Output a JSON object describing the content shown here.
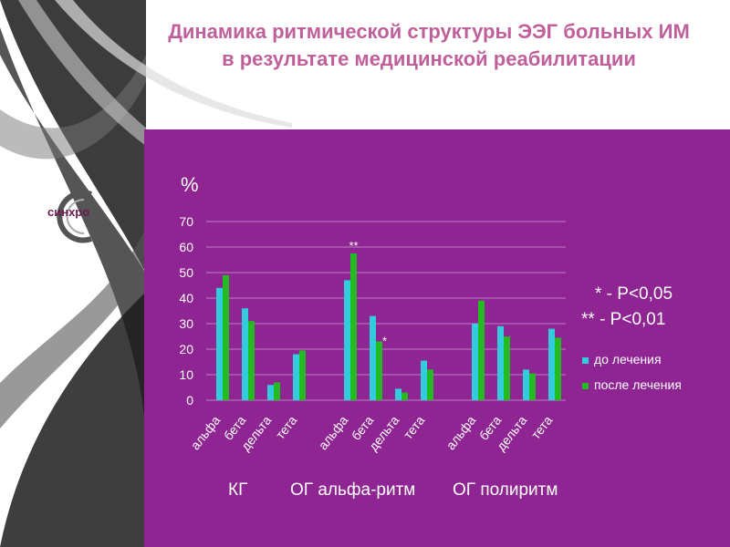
{
  "title": "Динамика ритмической структуры ЭЭГ больных ИМ в результате медицинской реабилитации",
  "logo_text": "синхро",
  "y_unit": "%",
  "significance_notes": [
    "* - P<0,05",
    "** - P<0,01"
  ],
  "group_labels": [
    "КГ",
    "ОГ альфа-ритм",
    "ОГ полиритм"
  ],
  "colors": {
    "before": "#33ccdd",
    "after": "#22bb22",
    "panel": "#8e2593",
    "title": "#c0609a"
  },
  "chart_data": {
    "type": "bar",
    "ylabel": "%",
    "ylim": [
      0,
      70
    ],
    "yticks": [
      0,
      10,
      20,
      30,
      40,
      50,
      60,
      70
    ],
    "grid": true,
    "legend_position": "right",
    "groups": [
      {
        "label": "КГ",
        "categories": [
          "альфа",
          "бета",
          "дельта",
          "тета"
        ],
        "before": [
          44,
          36,
          6,
          18
        ],
        "after": [
          49,
          31,
          7,
          19.5
        ],
        "markers": [
          "",
          "",
          "",
          ""
        ]
      },
      {
        "label": "ОГ альфа-ритм",
        "categories": [
          "альфа",
          "бета",
          "дельта",
          "тета"
        ],
        "before": [
          47,
          33,
          4.5,
          15.5
        ],
        "after": [
          57.5,
          23,
          3,
          12
        ],
        "markers": [
          "**",
          "*",
          "",
          ""
        ]
      },
      {
        "label": "ОГ полиритм",
        "categories": [
          "альфа",
          "бета",
          "дельта",
          "тета"
        ],
        "before": [
          30,
          29,
          12,
          28
        ],
        "after": [
          39,
          25,
          10.5,
          24.5
        ],
        "markers": [
          "",
          "",
          "",
          ""
        ]
      }
    ],
    "series": [
      {
        "name": "до лечения",
        "key": "before"
      },
      {
        "name": "после лечения",
        "key": "after"
      }
    ]
  }
}
